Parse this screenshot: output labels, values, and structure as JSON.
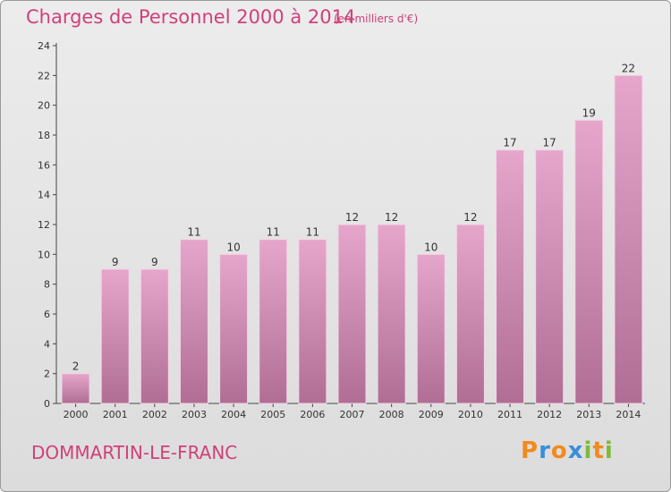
{
  "header": {
    "title": "Charges de Personnel 2000 à 2014",
    "subtitle": "(en milliers d'€)"
  },
  "footer": {
    "city": "DOMMARTIN-LE-FRANC",
    "logo": "Proxiti"
  },
  "colors": {
    "accent": "#d0407a",
    "bar_top": "#e6a6cb",
    "bar_bottom": "#b06e94"
  },
  "chart_data": {
    "type": "bar",
    "title": "Charges de Personnel 2000 à 2014",
    "subtitle": "(en milliers d'€)",
    "categories": [
      "2000",
      "2001",
      "2002",
      "2003",
      "2004",
      "2005",
      "2006",
      "2007",
      "2008",
      "2009",
      "2010",
      "2011",
      "2012",
      "2013",
      "2014"
    ],
    "values": [
      2,
      9,
      9,
      11,
      10,
      11,
      11,
      12,
      12,
      10,
      12,
      17,
      17,
      19,
      22
    ],
    "data_labels": [
      "2",
      "9",
      "9",
      "11",
      "10",
      "11",
      "11",
      "12",
      "12",
      "10",
      "12",
      "17",
      "17",
      "19",
      "22"
    ],
    "ylim": [
      0,
      24
    ],
    "yticks": [
      0,
      2,
      4,
      6,
      8,
      10,
      12,
      14,
      16,
      18,
      20,
      22,
      24
    ],
    "grid": false,
    "legend": "none"
  }
}
